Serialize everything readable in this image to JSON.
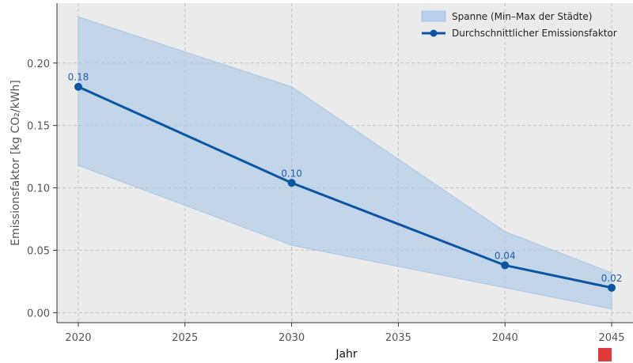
{
  "chart_data": {
    "type": "line",
    "xlabel": "Jahr",
    "ylabel": "Emissionsfaktor [kg CO₂/kWh]",
    "x": [
      2020,
      2030,
      2040,
      2045
    ],
    "series": [
      {
        "name": "Durchschnittlicher Emissionsfaktor",
        "values": [
          0.181,
          0.104,
          0.038,
          0.02
        ],
        "labels": [
          "0.18",
          "0.10",
          "0.04",
          "0.02"
        ],
        "color": "#0b55a3"
      }
    ],
    "band": {
      "name": "Spanne (Min–Max der Städte)",
      "min": [
        0.118,
        0.054,
        0.02,
        0.003
      ],
      "max": [
        0.237,
        0.181,
        0.065,
        0.032
      ],
      "color": "#a9c6e8"
    },
    "xlim": [
      2019,
      2046
    ],
    "ylim": [
      -0.008,
      0.248
    ],
    "xticks": [
      2020,
      2025,
      2030,
      2035,
      2040,
      2045
    ],
    "yticks": [
      0.0,
      0.05,
      0.1,
      0.15,
      0.2
    ],
    "ytick_labels": [
      "0.00",
      "0.05",
      "0.10",
      "0.15",
      "0.20"
    ],
    "grid": true,
    "legend_position": "top-right",
    "background": "#ebebeb"
  }
}
